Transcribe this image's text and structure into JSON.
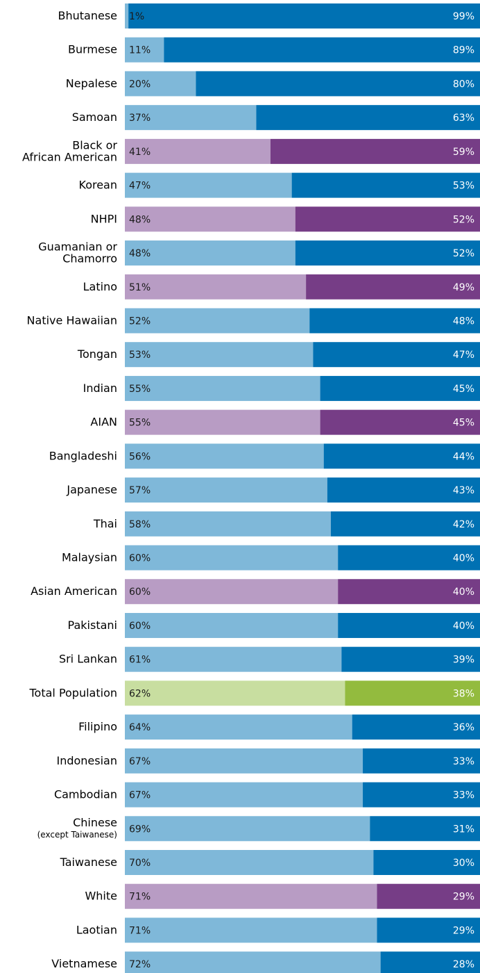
{
  "chart_data": {
    "type": "stacked_bar_horizontal",
    "categories": [
      "Bhutanese",
      "Burmese",
      "Nepalese",
      "Samoan",
      "Black or\nAfrican American",
      "Korean",
      "NHPI",
      "Guamanian or\nChamorro",
      "Latino",
      "Native Hawaiian",
      "Tongan",
      "Indian",
      "AIAN",
      "Bangladeshi",
      "Japanese",
      "Thai",
      "Malaysian",
      "Asian American",
      "Pakistani",
      "Sri Lankan",
      "Total Population",
      "Filipino",
      "Indonesian",
      "Cambodian",
      "Chinese\n(except Taiwanese)",
      "Taiwanese",
      "White",
      "Laotian",
      "Vietnamese"
    ],
    "xlim": [
      0,
      100
    ],
    "series": [
      {
        "values": [
          1,
          11,
          20,
          37,
          41,
          47,
          48,
          48,
          51,
          52,
          53,
          55,
          55,
          56,
          57,
          58,
          60,
          60,
          60,
          61,
          62,
          64,
          67,
          67,
          69,
          70,
          71,
          71,
          72
        ],
        "value_labels": [
          "1%",
          "11%",
          "20%",
          "37%",
          "41%",
          "47%",
          "48%",
          "48%",
          "51%",
          "52%",
          "53%",
          "55%",
          "55%",
          "56%",
          "57%",
          "58%",
          "60%",
          "60%",
          "60%",
          "61%",
          "62%",
          "64%",
          "67%",
          "67%",
          "69%",
          "70%",
          "71%",
          "71%",
          "72%"
        ],
        "colors": [
          "#7fb8d9",
          "#7fb8d9",
          "#7fb8d9",
          "#7fb8d9",
          "#b89cc4",
          "#7fb8d9",
          "#b89cc4",
          "#7fb8d9",
          "#b89cc4",
          "#7fb8d9",
          "#7fb8d9",
          "#7fb8d9",
          "#b89cc4",
          "#7fb8d9",
          "#7fb8d9",
          "#7fb8d9",
          "#7fb8d9",
          "#b89cc4",
          "#7fb8d9",
          "#7fb8d9",
          "#c8dea0",
          "#7fb8d9",
          "#7fb8d9",
          "#7fb8d9",
          "#7fb8d9",
          "#7fb8d9",
          "#b89cc4",
          "#7fb8d9",
          "#7fb8d9"
        ]
      },
      {
        "values": [
          99,
          89,
          80,
          63,
          59,
          53,
          52,
          52,
          49,
          48,
          47,
          45,
          45,
          44,
          43,
          42,
          40,
          40,
          40,
          39,
          38,
          36,
          33,
          33,
          31,
          30,
          29,
          29,
          28
        ],
        "value_labels": [
          "99%",
          "89%",
          "80%",
          "63%",
          "59%",
          "53%",
          "52%",
          "52%",
          "49%",
          "48%",
          "47%",
          "45%",
          "45%",
          "44%",
          "43%",
          "42%",
          "40%",
          "40%",
          "40%",
          "39%",
          "38%",
          "36%",
          "33%",
          "33%",
          "31%",
          "30%",
          "29%",
          "29%",
          "28%"
        ],
        "colors": [
          "#0071b3",
          "#0071b3",
          "#0071b3",
          "#0071b3",
          "#763d86",
          "#0071b3",
          "#763d86",
          "#0071b3",
          "#763d86",
          "#0071b3",
          "#0071b3",
          "#0071b3",
          "#763d86",
          "#0071b3",
          "#0071b3",
          "#0071b3",
          "#0071b3",
          "#763d86",
          "#0071b3",
          "#0071b3",
          "#93bb3e",
          "#0071b3",
          "#0071b3",
          "#0071b3",
          "#0071b3",
          "#0071b3",
          "#763d86",
          "#0071b3",
          "#0071b3"
        ]
      }
    ]
  }
}
